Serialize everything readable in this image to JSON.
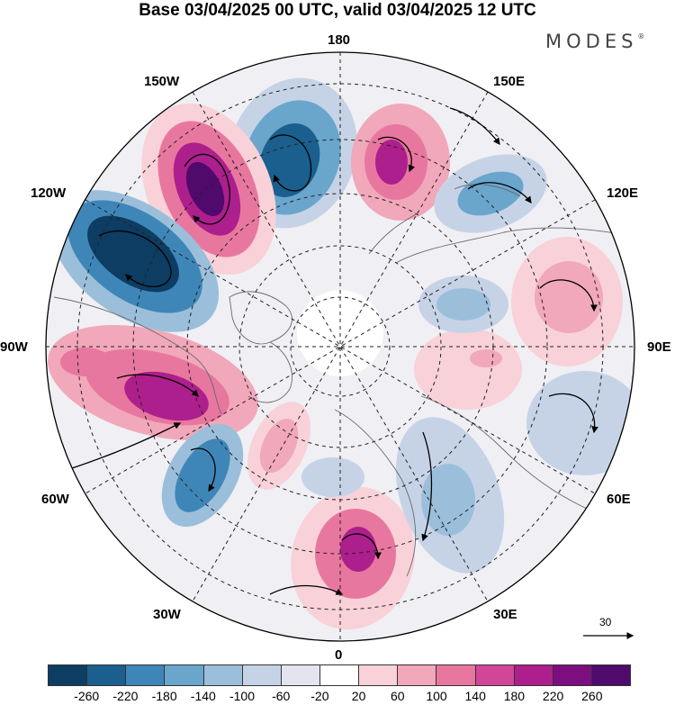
{
  "title": "Base 03/04/2025 00 UTC, valid 03/04/2025 12 UTC",
  "brand": {
    "name": "MODES",
    "mark": "®"
  },
  "longitude_labels": {
    "lon_180": "180",
    "lon_150e": "150E",
    "lon_120e": "120E",
    "lon_90e": "90E",
    "lon_60e": "60E",
    "lon_30e": "30E",
    "lon_0": "0",
    "lon_30w": "30W",
    "lon_60w": "60W",
    "lon_90w": "90W",
    "lon_120w": "120W",
    "lon_150w": "150W"
  },
  "reference_vector": {
    "label": "30"
  },
  "colorbar": {
    "colors": [
      "#0d3d63",
      "#1a5f8e",
      "#3f86b8",
      "#6aa5cc",
      "#9bbfdb",
      "#c6d3e7",
      "#e4e4f0",
      "#ffffff",
      "#f8d2d8",
      "#f1a8ba",
      "#e8779f",
      "#d2469a",
      "#ad1f8c",
      "#7d0e7f",
      "#4f0a6b"
    ],
    "ticks": [
      "-260",
      "-220",
      "-180",
      "-140",
      "-100",
      "-60",
      "-20",
      "20",
      "60",
      "100",
      "140",
      "180",
      "220",
      "260"
    ]
  }
}
